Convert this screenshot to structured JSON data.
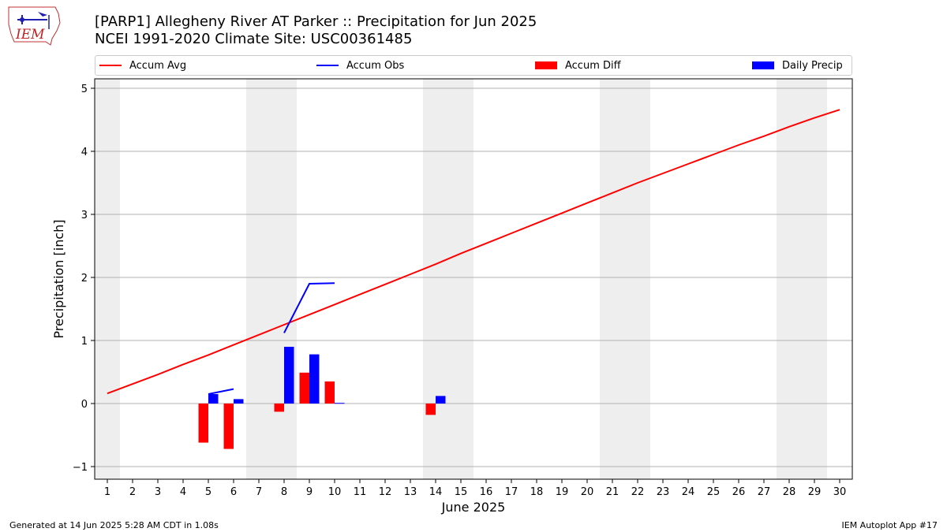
{
  "header": {
    "title_line1": "[PARP1] Allegheny River  AT Parker :: Precipitation for Jun 2025",
    "title_line2": "NCEI 1991-2020 Climate Site: USC00361485"
  },
  "logo": {
    "text": "IEM",
    "icon": "iem-iowa-logo"
  },
  "legend": {
    "accum_avg": "Accum Avg",
    "accum_obs": "Accum Obs",
    "accum_diff": "Accum Diff",
    "daily_precip": "Daily Precip"
  },
  "footer": {
    "generated": "Generated at 14 Jun 2025 5:28 AM CDT in 1.08s",
    "app": "IEM Autoplot App #17"
  },
  "chart_data": {
    "type": "bar",
    "xlabel": "June 2025",
    "ylabel": "Precipitation [inch]",
    "xlim": [
      0.5,
      30.5
    ],
    "ylim": [
      -1.2,
      5.15
    ],
    "xticks": [
      1,
      2,
      3,
      4,
      5,
      6,
      7,
      8,
      9,
      10,
      11,
      12,
      13,
      14,
      15,
      16,
      17,
      18,
      19,
      20,
      21,
      22,
      23,
      24,
      25,
      26,
      27,
      28,
      29,
      30
    ],
    "yticks": [
      -1,
      0,
      1,
      2,
      3,
      4,
      5
    ],
    "grid": "y",
    "legend_position": "top",
    "weekend_shading": [
      [
        0.5,
        1.5
      ],
      [
        6.5,
        8.5
      ],
      [
        13.5,
        15.5
      ],
      [
        20.5,
        22.5
      ],
      [
        27.5,
        29.5
      ]
    ],
    "colors": {
      "accum_avg": "#ff0000",
      "accum_obs": "#0000ff",
      "accum_diff": "#ff0000",
      "daily_precip": "#0000ff",
      "shade": "#eeeeee"
    },
    "series": [
      {
        "name": "Accum Avg",
        "kind": "line",
        "x": [
          1,
          2,
          3,
          4,
          5,
          6,
          7,
          8,
          9,
          10,
          11,
          12,
          13,
          14,
          15,
          16,
          17,
          18,
          19,
          20,
          21,
          22,
          23,
          24,
          25,
          26,
          27,
          28,
          29,
          30
        ],
        "values": [
          0.16,
          0.31,
          0.46,
          0.62,
          0.77,
          0.93,
          1.09,
          1.25,
          1.41,
          1.57,
          1.73,
          1.89,
          2.05,
          2.21,
          2.38,
          2.54,
          2.7,
          2.86,
          3.02,
          3.18,
          3.34,
          3.5,
          3.65,
          3.8,
          3.95,
          4.1,
          4.24,
          4.39,
          4.53,
          4.66
        ]
      },
      {
        "name": "Accum Obs",
        "kind": "line",
        "segments": [
          {
            "x": [
              5,
              6
            ],
            "values": [
              0.15,
              0.23
            ]
          },
          {
            "x": [
              8,
              9,
              10
            ],
            "values": [
              1.12,
              1.9,
              1.91
            ]
          }
        ]
      },
      {
        "name": "Accum Diff",
        "kind": "bar",
        "x": [
          5,
          6,
          8,
          9,
          10,
          14
        ],
        "values": [
          -0.62,
          -0.72,
          -0.13,
          0.49,
          0.35,
          -0.18
        ]
      },
      {
        "name": "Daily Precip",
        "kind": "bar",
        "x": [
          5,
          6,
          8,
          9,
          10,
          14
        ],
        "values": [
          0.15,
          0.07,
          0.9,
          0.78,
          0.01,
          0.12
        ]
      }
    ]
  }
}
